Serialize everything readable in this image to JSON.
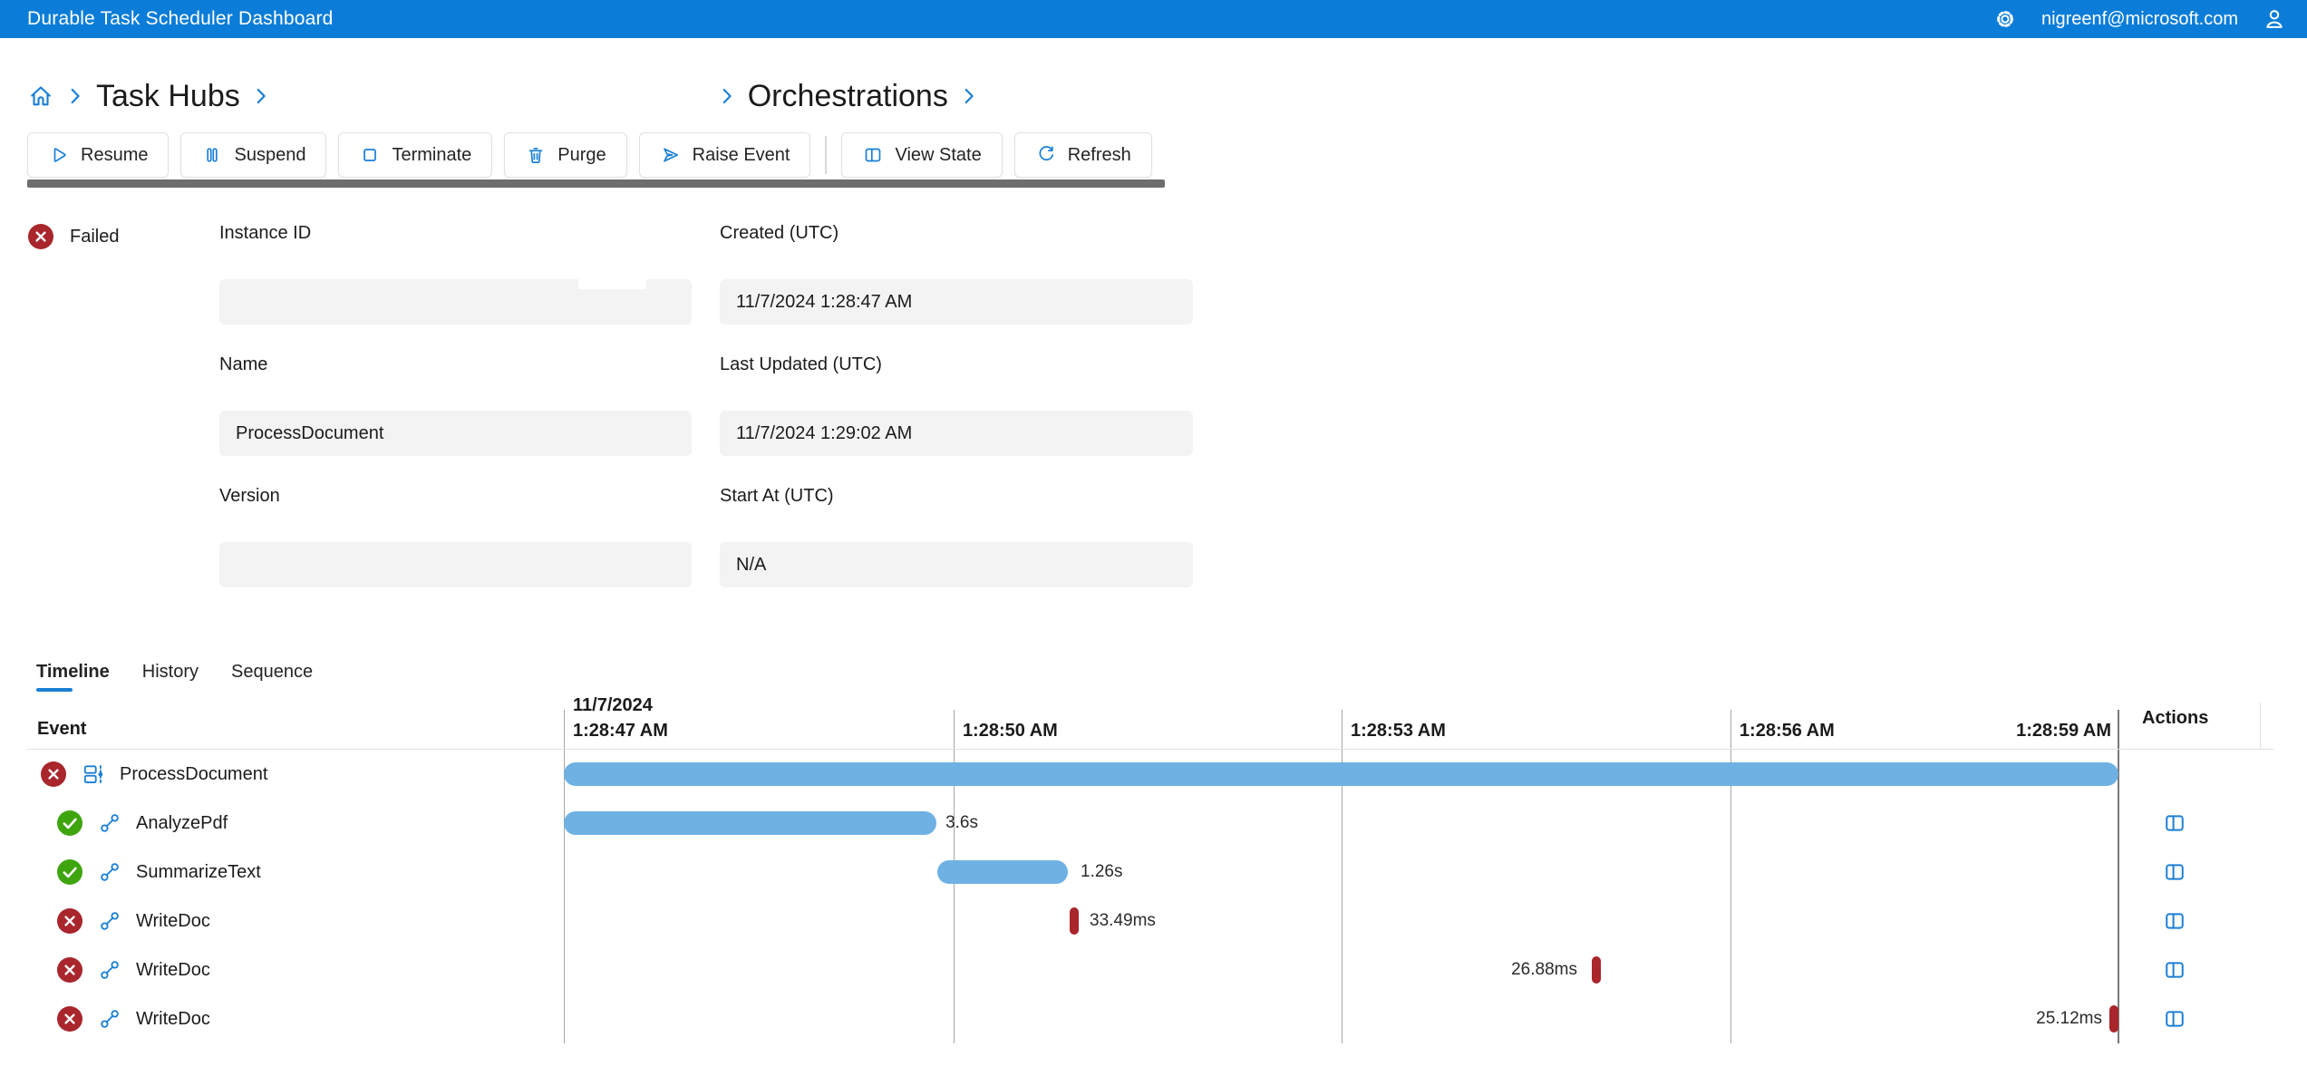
{
  "app": {
    "title": "Durable Task Scheduler Dashboard",
    "user_email": "nigreenf@microsoft.com"
  },
  "colors": {
    "topbar_blue": "#0b7dd8",
    "accent_blue": "#1a7fd5",
    "bar_blue": "#6fb1e3",
    "failed_red": "#a8262c",
    "success_green": "#3fa50f",
    "divider_gray": "#6e6e6e",
    "field_bg": "#f3f3f3"
  },
  "icons": [
    "gear-icon",
    "person-icon",
    "home-icon",
    "chevron-right-icon",
    "play-icon",
    "pause-icon",
    "stop-icon",
    "trash-icon",
    "send-icon",
    "split-view-icon",
    "refresh-icon",
    "failed-icon",
    "success-icon",
    "orchestration-icon",
    "activity-icon"
  ],
  "breadcrumb": {
    "task_hubs": "Task Hubs",
    "orchestrations": "Orchestrations"
  },
  "toolbar": {
    "items": [
      {
        "label": "Resume",
        "icon": "play-icon"
      },
      {
        "label": "Suspend",
        "icon": "pause-icon"
      },
      {
        "label": "Terminate",
        "icon": "stop-icon"
      },
      {
        "label": "Purge",
        "icon": "trash-icon"
      },
      {
        "label": "Raise Event",
        "icon": "send-icon"
      },
      {
        "label": "View State",
        "icon": "split-view-icon"
      },
      {
        "label": "Refresh",
        "icon": "refresh-icon"
      }
    ]
  },
  "status": {
    "label": "Failed",
    "icon": "failed-icon"
  },
  "fields": {
    "instance_id": {
      "label": "Instance ID",
      "value": ""
    },
    "created": {
      "label": "Created (UTC)",
      "value": "11/7/2024 1:28:47 AM"
    },
    "name": {
      "label": "Name",
      "value": "ProcessDocument"
    },
    "last_updated": {
      "label": "Last Updated (UTC)",
      "value": "11/7/2024 1:29:02 AM"
    },
    "version": {
      "label": "Version",
      "value": ""
    },
    "start_at": {
      "label": "Start At (UTC)",
      "value": "N/A"
    }
  },
  "tabs": [
    {
      "label": "Timeline"
    },
    {
      "label": "History"
    },
    {
      "label": "Sequence"
    }
  ],
  "timeline": {
    "event_header": "Event",
    "actions_header": "Actions",
    "ticks": [
      {
        "date": "11/7/2024",
        "time": "1:28:47 AM",
        "style": "left:10px"
      },
      {
        "time": "1:28:50 AM",
        "style": "left:calc(25.07% + 10px)"
      },
      {
        "time": "1:28:53 AM",
        "style": "left:calc(50.03% + 10px)"
      },
      {
        "time": "1:28:56 AM",
        "style": "left:calc(75.04% + 10px)"
      },
      {
        "time": "1:28:59 AM",
        "style": "right:8px"
      }
    ],
    "rows": [
      {
        "label": "ProcessDocument",
        "status": "Failed",
        "status_icon": "failed-icon",
        "type_icon": "orchestration-icon",
        "duration": "",
        "bar_style": "left:0;width:100%;background:#6fb1e3",
        "duration_style": "display:none"
      },
      {
        "label": "AnalyzePdf",
        "status": "Completed",
        "status_icon": "success-icon",
        "type_icon": "activity-icon",
        "duration": "3.6s",
        "bar_style": "left:0;width:23.97%;background:#6fb1e3",
        "duration_style": "left:calc(23.97% + 10px)"
      },
      {
        "label": "SummarizeText",
        "status": "Completed",
        "status_icon": "success-icon",
        "type_icon": "activity-icon",
        "duration": "1.26s",
        "bar_style": "left:24.02%;width:8.4%;background:#6fb1e3",
        "duration_style": "left:calc(32.42% + 14px)"
      },
      {
        "label": "WriteDoc",
        "status": "Failed",
        "status_icon": "failed-icon",
        "type_icon": "activity-icon",
        "duration": "33.49ms",
        "bar_style": "left:32.54%;width:10px;background:#a8262c;border-radius:5px;height:30px",
        "duration_style": "left:calc(32.54% + 22px)"
      },
      {
        "label": "WriteDoc",
        "status": "Failed",
        "status_icon": "failed-icon",
        "type_icon": "activity-icon",
        "duration": "26.88ms",
        "bar_style": "left:66.12%;width:10px;background:#a8262c;border-radius:5px;height:30px",
        "duration_style": "right:calc(33.88% + 16px)"
      },
      {
        "label": "WriteDoc",
        "status": "Failed",
        "status_icon": "failed-icon",
        "type_icon": "activity-icon",
        "duration": "25.12ms",
        "bar_style": "left:calc(100% - 10px);width:10px;background:#a8262c;border-radius:5px;height:30px",
        "duration_style": "right:18px"
      }
    ]
  }
}
